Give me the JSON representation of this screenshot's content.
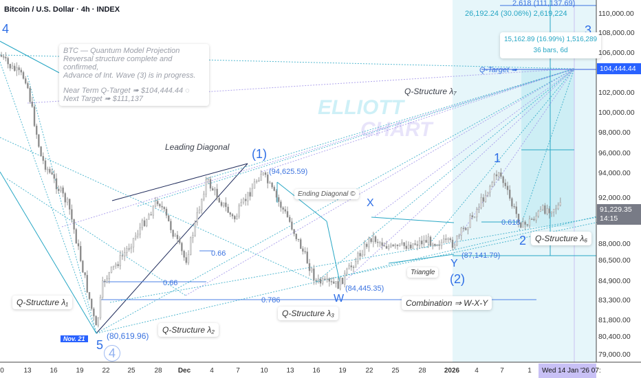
{
  "header": {
    "title": "Bitcoin / U.S. Dollar · 4h · INDEX"
  },
  "note": {
    "line1": "BTC — Quantum Model Projection",
    "line2": "Reversal structure complete and confirmed,",
    "line3": "Advance of Int. Wave (3) is in progress.",
    "line4": "Near Term Q-Target ➠ $104,444.44 ◌",
    "line5": "Next Target ➠ $111,137"
  },
  "watermark": {
    "line1": "ELLIOTT",
    "line2": "CHART"
  },
  "labels": {
    "leading_diagonal": "Leading Diagonal",
    "ending_diagonal": "Ending Diagonal ©",
    "q1": "Q-Structure λ₁",
    "q2": "Q-Structure λ₂",
    "q3": "Q-Structure λ₃",
    "q6": "Q-Structure λ₆",
    "q7": "Q-Structure λ₇",
    "triangle": "Triangle",
    "combination": "Combination ⇒ W-X-Y",
    "qtarget": "Q-Target ➠",
    "nov21": "Nov. 21"
  },
  "waves": {
    "w4_top": "4",
    "w1p": "(1)",
    "wX": "X",
    "wW": "W",
    "wY": "Y",
    "w2p": "(2)",
    "w1": "1",
    "w2": "2",
    "w3": "3",
    "w5": "5",
    "w4c": "4"
  },
  "prices": {
    "p1": "(94,625.59)",
    "p2": "(84,445.35)",
    "p3": "(80,619.96)",
    "p4": "(87,141.79)",
    "f066a": "0.66",
    "f066b": "0.66",
    "f0786": "0.786",
    "f0618": "0.618",
    "fib2618": "2.618 (111,137.69)",
    "measure_top": "26,192.24 (30.06%) 2,619,224",
    "measure1": "15,162.89 (16.99%) 1,516,289",
    "measure2": "36 bars, 6d"
  },
  "price_axis": [
    "110,000.00",
    "108,000.00",
    "106,000.00",
    "102,000.00",
    "100,000.00",
    "98,000.00",
    "96,000.00",
    "94,000.00",
    "92,000.00",
    "88,000.00",
    "86,500.00",
    "84,900.00",
    "83,300.00",
    "81,800.00",
    "80,400.00",
    "79,000.00"
  ],
  "badges": {
    "target": "104,444.44",
    "last": "91,229.35",
    "countdown": "14:15",
    "crosshair_time": "Wed 14 Jan '26  07:"
  },
  "time_axis": [
    "0",
    "13",
    "16",
    "19",
    "22",
    "25",
    "28",
    "Dec",
    "4",
    "7",
    "10",
    "13",
    "16",
    "19",
    "22",
    "25",
    "28",
    "2026",
    "4",
    "7",
    "1"
  ],
  "colors": {
    "accent": "#2962ff",
    "teal": "#26a6c4",
    "lavender": "#9c8ee8"
  },
  "chart_data": {
    "type": "candlestick",
    "title": "Bitcoin / U.S. Dollar · 4h · INDEX",
    "ylim": [
      79000,
      111000
    ],
    "last_price": 91229.35,
    "target": 104444.44,
    "next_target": 111137.69,
    "key_points": [
      {
        "label": "(1)",
        "price": 94625.59
      },
      {
        "label": "W",
        "price": 84445.35
      },
      {
        "label": "5",
        "price": 80619.96
      },
      {
        "label": "Y",
        "price": 87141.79
      }
    ]
  }
}
